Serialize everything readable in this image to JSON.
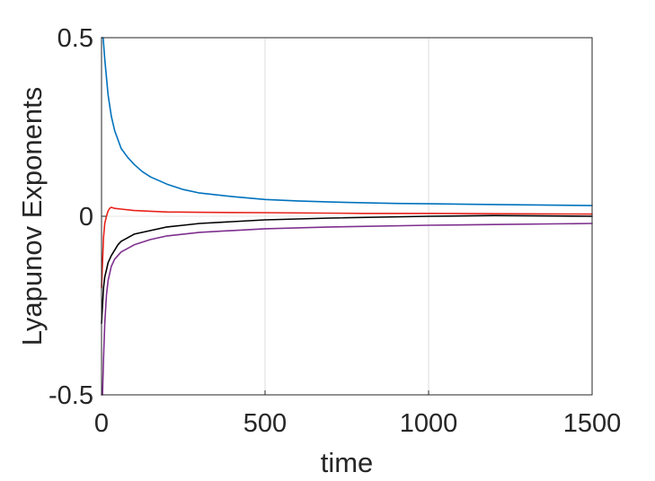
{
  "chart_data": {
    "type": "line",
    "title": "",
    "xlabel": "time",
    "ylabel": "Lyapunov Exponents",
    "xlim": [
      0,
      1500
    ],
    "ylim": [
      -0.5,
      0.5
    ],
    "x_ticks": [
      "0",
      "500",
      "1000",
      "1500"
    ],
    "y_ticks": [
      "-0.5",
      "0",
      "0.5"
    ],
    "grid": "vertical",
    "legend": "none",
    "series": [
      {
        "color": "#0072BD",
        "points": [
          [
            0,
            0.5
          ],
          [
            5,
            0.5
          ],
          [
            10,
            0.44
          ],
          [
            20,
            0.34
          ],
          [
            30,
            0.28
          ],
          [
            40,
            0.24
          ],
          [
            50,
            0.215
          ],
          [
            60,
            0.19
          ],
          [
            80,
            0.165
          ],
          [
            100,
            0.145
          ],
          [
            125,
            0.125
          ],
          [
            150,
            0.11
          ],
          [
            200,
            0.09
          ],
          [
            250,
            0.075
          ],
          [
            300,
            0.065
          ],
          [
            400,
            0.055
          ],
          [
            500,
            0.047
          ],
          [
            600,
            0.043
          ],
          [
            700,
            0.04
          ],
          [
            800,
            0.038
          ],
          [
            900,
            0.036
          ],
          [
            1000,
            0.035
          ],
          [
            1200,
            0.033
          ],
          [
            1500,
            0.03
          ]
        ]
      },
      {
        "color": "#E8221A",
        "points": [
          [
            0,
            -0.2
          ],
          [
            3,
            -0.13
          ],
          [
            6,
            -0.06
          ],
          [
            10,
            -0.02
          ],
          [
            15,
            0.0
          ],
          [
            20,
            0.015
          ],
          [
            25,
            0.022
          ],
          [
            30,
            0.025
          ],
          [
            40,
            0.022
          ],
          [
            60,
            0.02
          ],
          [
            100,
            0.016
          ],
          [
            150,
            0.014
          ],
          [
            200,
            0.012
          ],
          [
            300,
            0.011
          ],
          [
            500,
            0.01
          ],
          [
            800,
            0.008
          ],
          [
            1000,
            0.008
          ],
          [
            1500,
            0.006
          ]
        ]
      },
      {
        "color": "#000000",
        "points": [
          [
            0,
            -0.3
          ],
          [
            3,
            -0.25
          ],
          [
            6,
            -0.2
          ],
          [
            10,
            -0.17
          ],
          [
            15,
            -0.15
          ],
          [
            20,
            -0.13
          ],
          [
            30,
            -0.11
          ],
          [
            40,
            -0.095
          ],
          [
            50,
            -0.08
          ],
          [
            60,
            -0.07
          ],
          [
            80,
            -0.06
          ],
          [
            100,
            -0.05
          ],
          [
            125,
            -0.045
          ],
          [
            150,
            -0.04
          ],
          [
            200,
            -0.03
          ],
          [
            250,
            -0.025
          ],
          [
            300,
            -0.02
          ],
          [
            400,
            -0.015
          ],
          [
            500,
            -0.01
          ],
          [
            700,
            -0.005
          ],
          [
            1000,
            0.0
          ],
          [
            1200,
            0.002
          ],
          [
            1500,
            0.0
          ]
        ]
      },
      {
        "color": "#7E2F8E",
        "points": [
          [
            0,
            -0.5
          ],
          [
            3,
            -0.5
          ],
          [
            6,
            -0.4
          ],
          [
            10,
            -0.3
          ],
          [
            15,
            -0.22
          ],
          [
            20,
            -0.18
          ],
          [
            25,
            -0.16
          ],
          [
            30,
            -0.14
          ],
          [
            40,
            -0.12
          ],
          [
            50,
            -0.11
          ],
          [
            60,
            -0.1
          ],
          [
            80,
            -0.09
          ],
          [
            100,
            -0.08
          ],
          [
            150,
            -0.065
          ],
          [
            200,
            -0.055
          ],
          [
            300,
            -0.045
          ],
          [
            400,
            -0.04
          ],
          [
            500,
            -0.035
          ],
          [
            700,
            -0.03
          ],
          [
            1000,
            -0.025
          ],
          [
            1200,
            -0.023
          ],
          [
            1500,
            -0.02
          ]
        ]
      }
    ]
  }
}
